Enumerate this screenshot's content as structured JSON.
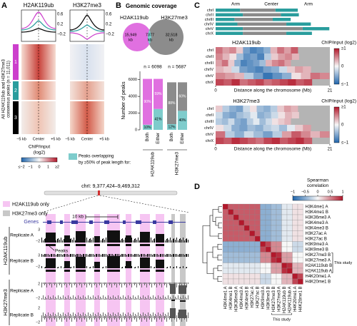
{
  "panel_a": {
    "label": "A",
    "columns": [
      "H2AK119ub",
      "H3K27me3"
    ],
    "profile_ticks": [
      [
        "0.6",
        "0.2",
        "−0.2"
      ],
      [
        "0.6",
        "0.2",
        "−0.2"
      ]
    ],
    "clusters": [
      {
        "label": "1",
        "color": "#cc3fcc"
      },
      {
        "label": "2",
        "color": "#2a9d9d"
      },
      {
        "label": "3",
        "color": "#000000"
      }
    ],
    "x_labels": [
      "−5 kb",
      "Center",
      "+5 kb"
    ],
    "y_label": [
      "All H2AK119ub and H3K27me3",
      "consensus peaks (n = 11,011)"
    ],
    "colorbar": {
      "title": [
        "ChIP/input",
        "(log2)"
      ],
      "ticks": [
        "≤−2",
        "−1",
        "0",
        "1",
        "≥2"
      ]
    }
  },
  "panel_b": {
    "label": "B",
    "title": "Genomic coverage",
    "sets": [
      "H2AK119ub",
      "H3K27me3"
    ],
    "venn": [
      {
        "value": "15,949",
        "unit": "kb"
      },
      {
        "value": "7377",
        "unit": "kb"
      },
      {
        "value": "32,518",
        "unit": "kb"
      }
    ],
    "bar_chart": {
      "y_label": "Number of peaks",
      "ylim": [
        0,
        7000
      ],
      "yticks": [
        0,
        2000,
        4000,
        6000
      ],
      "overlap_color": "#7ecccc",
      "legend": [
        "Peaks overlapping",
        "by ≥50% of peak length for:"
      ],
      "groups": [
        {
          "name": "H2AK119ub",
          "n": 6098,
          "n_label": "n = 6098",
          "color": "#e070e0",
          "bars": [
            {
              "name": "Both",
              "values": [
                90,
                10
              ],
              "value_labels": [
                "90%",
                "10%"
              ]
            },
            {
              "name": "Either",
              "values": [
                59,
                41
              ],
              "value_labels": [
                "59%",
                "41%"
              ]
            }
          ]
        },
        {
          "name": "H3K27me3",
          "n": 5687,
          "n_label": "n = 5687",
          "color": "#8c8c8c",
          "bars": [
            {
              "name": "Both",
              "values": [
                88,
                12
              ],
              "value_labels": [
                "88%",
                "12%"
              ]
            },
            {
              "name": "Either",
              "values": [
                60,
                40
              ],
              "value_labels": [
                "60%",
                "40%"
              ]
            }
          ]
        }
      ]
    }
  },
  "panel_c": {
    "label": "C",
    "ideogram_labels": [
      "Arm",
      "Center",
      "Arm"
    ],
    "chromosomes": [
      {
        "name": "chrI",
        "length": 15.1,
        "center": [
          4.5,
          11
        ]
      },
      {
        "name": "chrII",
        "length": 15.3,
        "center": [
          5,
          12
        ]
      },
      {
        "name": "chrIII",
        "length": 13.8,
        "center": [
          3.5,
          10.5
        ]
      },
      {
        "name": "chrIV",
        "length": 17.5,
        "center": [
          4,
          13
        ]
      },
      {
        "name": "chrV",
        "length": 20.9,
        "center": [
          5,
          16
        ]
      },
      {
        "name": "chrX",
        "length": 17.7,
        "center": [
          5,
          13
        ]
      }
    ],
    "x_label": "Distance along the chromosome (Mb)",
    "xlim": [
      0,
      21
    ],
    "xticks": [
      0,
      21
    ],
    "colorbar": {
      "title": "ChIP/input (log2)",
      "ticks": [
        "≥1",
        "0",
        "≤−1"
      ]
    },
    "vlim": [
      -1,
      1
    ],
    "heatmaps": [
      {
        "title": "H2AK119ub",
        "rows": [
          [
            0.6,
            0.4,
            0.5,
            0.2,
            -0.6,
            -0.8,
            -0.7,
            -0.5,
            0.3,
            0.6,
            0.4,
            0.7
          ],
          [
            0.5,
            0.3,
            0.1,
            -0.4,
            -0.7,
            -0.6,
            -0.8,
            -0.3,
            0.2,
            0.4,
            0.5,
            0.3
          ],
          [
            0.4,
            0.6,
            0.2,
            -0.5,
            -0.8,
            -0.7,
            -0.6,
            -0.4,
            0.3,
            0.5,
            0.6,
            0.4
          ],
          [
            0.3,
            0.2,
            -0.2,
            -0.6,
            -0.7,
            -0.8,
            -0.6,
            -0.5,
            -0.2,
            0.2,
            0.4,
            0.3
          ],
          [
            0.5,
            0.4,
            0.3,
            -0.3,
            -0.6,
            -0.9,
            -0.7,
            -0.5,
            0.1,
            0.3,
            0.6,
            0.5
          ],
          [
            0.8,
            0.7,
            0.9,
            0.6,
            0.7,
            0.8,
            0.6,
            0.7,
            0.8,
            0.9,
            0.7,
            0.8
          ]
        ]
      },
      {
        "title": "H3K27me3",
        "rows": [
          [
            0.2,
            -0.3,
            -0.5,
            -0.6,
            -0.2,
            0.1,
            -0.4,
            -0.5,
            -0.3,
            0.2,
            0.4,
            0.3
          ],
          [
            -0.2,
            -0.5,
            -0.6,
            -0.4,
            -0.3,
            -0.1,
            -0.5,
            -0.4,
            -0.2,
            0.1,
            0.3,
            0.2
          ],
          [
            -0.3,
            -0.4,
            -0.2,
            -0.5,
            -0.6,
            -0.3,
            -0.1,
            -0.4,
            -0.2,
            0.1,
            0.2,
            0.3
          ],
          [
            0.1,
            -0.2,
            -0.5,
            -0.6,
            -0.4,
            -0.5,
            -0.3,
            -0.2,
            -0.4,
            -0.1,
            0.2,
            0.4
          ],
          [
            0.6,
            -0.3,
            -0.5,
            -0.2,
            -0.4,
            -0.6,
            -0.3,
            0.4,
            0.7,
            0.5,
            0.3,
            0.5
          ],
          [
            0.8,
            0.7,
            0.9,
            0.8,
            0.7,
            0.6,
            0.8,
            0.9,
            0.7,
            0.8,
            0.9,
            0.7
          ]
        ]
      }
    ]
  },
  "panel_d": {
    "label": "D",
    "colorbar": {
      "title": [
        "Spearman",
        "correlation"
      ],
      "ticks": [
        {
          "value": -1,
          "label": "−1"
        },
        {
          "value": -0.5,
          "label": "−0.5"
        },
        0,
        0.5,
        1
      ]
    },
    "vlim": [
      -1,
      1
    ],
    "labels": [
      "H3K4me1 A",
      "H3K4me1 B",
      "H3K36me3 A",
      "H3K4me3 A",
      "H3K4me3 B",
      "H3K27ac A",
      "H3K27ac B",
      "H3K9me3 A",
      "H3K9me3 B",
      "H3K27me3 B",
      "H3K27me3 A",
      "H2AK119ub B",
      "H2AK119ub A",
      "H4K20me1 A",
      "H4K20me1 B"
    ],
    "this_study": {
      "label": "This study",
      "rows": [
        9,
        12
      ]
    },
    "matrix": [
      [
        1,
        0.7,
        0.7,
        0.7,
        0.7,
        0.7,
        0.7,
        -0.5,
        -0.5,
        -0.4,
        -0.4,
        -0.1,
        -0.1,
        0.1,
        0.1
      ],
      [
        0.7,
        1,
        0.7,
        0.7,
        0.7,
        0.7,
        0.7,
        -0.5,
        -0.5,
        -0.4,
        -0.4,
        -0.1,
        -0.1,
        0.1,
        0.1
      ],
      [
        0.7,
        0.7,
        1,
        0.7,
        0.7,
        0.7,
        0.7,
        -0.5,
        -0.5,
        -0.4,
        -0.4,
        -0.1,
        -0.1,
        0.1,
        0.1
      ],
      [
        0.7,
        0.7,
        0.7,
        1,
        0.7,
        0.7,
        0.7,
        -0.5,
        -0.5,
        -0.4,
        -0.4,
        -0.1,
        -0.1,
        0.1,
        0.1
      ],
      [
        0.7,
        0.7,
        0.7,
        0.7,
        1,
        0.7,
        0.7,
        -0.5,
        -0.5,
        -0.4,
        -0.4,
        -0.1,
        -0.1,
        0.1,
        0.1
      ],
      [
        0.7,
        0.7,
        0.7,
        0.7,
        0.7,
        1,
        0.7,
        -0.5,
        -0.5,
        -0.4,
        -0.4,
        -0.1,
        -0.1,
        0.1,
        0.1
      ],
      [
        0.7,
        0.7,
        0.7,
        0.7,
        0.7,
        0.7,
        1,
        -0.5,
        -0.5,
        -0.4,
        -0.4,
        -0.1,
        -0.1,
        0.1,
        0.1
      ],
      [
        -0.5,
        -0.5,
        -0.5,
        -0.5,
        -0.5,
        -0.5,
        -0.5,
        1,
        0.8,
        0.5,
        0.5,
        0,
        0,
        -0.2,
        -0.2
      ],
      [
        -0.5,
        -0.5,
        -0.5,
        -0.5,
        -0.5,
        -0.5,
        -0.5,
        0.8,
        1,
        0.5,
        0.5,
        0,
        0,
        -0.2,
        -0.2
      ],
      [
        -0.4,
        -0.4,
        -0.4,
        -0.4,
        -0.4,
        -0.4,
        -0.4,
        0.5,
        0.5,
        1,
        0.9,
        0.4,
        0.4,
        0,
        0
      ],
      [
        -0.4,
        -0.4,
        -0.4,
        -0.4,
        -0.4,
        -0.4,
        -0.4,
        0.5,
        0.5,
        0.9,
        1,
        0.4,
        0.4,
        0,
        0
      ],
      [
        -0.1,
        -0.1,
        -0.1,
        -0.1,
        -0.1,
        -0.1,
        -0.1,
        0,
        0,
        0.4,
        0.4,
        1,
        0.9,
        0.3,
        0.3
      ],
      [
        -0.1,
        -0.1,
        -0.1,
        -0.1,
        -0.1,
        -0.1,
        -0.1,
        0,
        0,
        0.4,
        0.4,
        0.9,
        1,
        0.3,
        0.3
      ],
      [
        0.1,
        0.1,
        0.1,
        0.1,
        0.1,
        0.1,
        0.1,
        -0.2,
        -0.2,
        0,
        0,
        0.3,
        0.3,
        1,
        0.8
      ],
      [
        0.1,
        0.1,
        0.1,
        0.1,
        0.1,
        0.1,
        0.1,
        -0.2,
        -0.2,
        0,
        0,
        0.3,
        0.3,
        0.8,
        1
      ]
    ]
  },
  "panel_browser": {
    "region": "chrI: 9,377,424–9,469,312",
    "legend": [
      "H2AK119ub only",
      "H3K27me3 only"
    ],
    "genes": "Genes",
    "scale": "10 kb",
    "peaks": "Peaks",
    "groups": [
      {
        "name": "H2AK119ub",
        "replicates": [
          {
            "name": "Replicate A",
            "ticks": [
              "3",
              "−2"
            ]
          },
          {
            "name": "Replicate B",
            "ticks": [
              "3",
              "−2"
            ]
          }
        ]
      },
      {
        "name": "H3K27me3",
        "replicates": [
          {
            "name": "Replicate A",
            "ticks": [
              "2",
              "−2"
            ]
          },
          {
            "name": "Replicate B",
            "ticks": [
              "2",
              "−2"
            ]
          }
        ]
      }
    ]
  }
}
